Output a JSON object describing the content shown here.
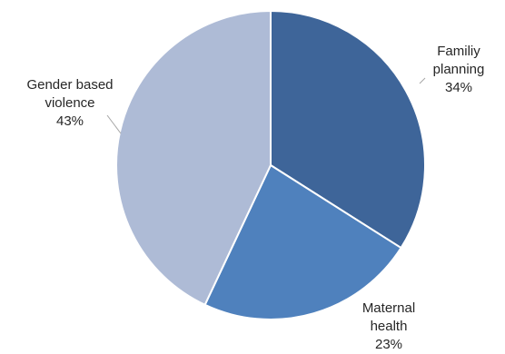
{
  "chart_data": {
    "type": "pie",
    "title": "",
    "slices": [
      {
        "label_lines": [
          "Familiy",
          "planning"
        ],
        "value": 34,
        "value_label": "34%",
        "color": "#3e6599"
      },
      {
        "label_lines": [
          "Maternal",
          "health"
        ],
        "value": 23,
        "value_label": "23%",
        "color": "#4f81bd"
      },
      {
        "label_lines": [
          "Gender based",
          "violence"
        ],
        "value": 43,
        "value_label": "43%",
        "color": "#aebbd6"
      }
    ],
    "start_angle": "12 o'clock",
    "direction": "clockwise",
    "data_labels": "category name and percentage, outside with leader lines",
    "legend": "none"
  }
}
